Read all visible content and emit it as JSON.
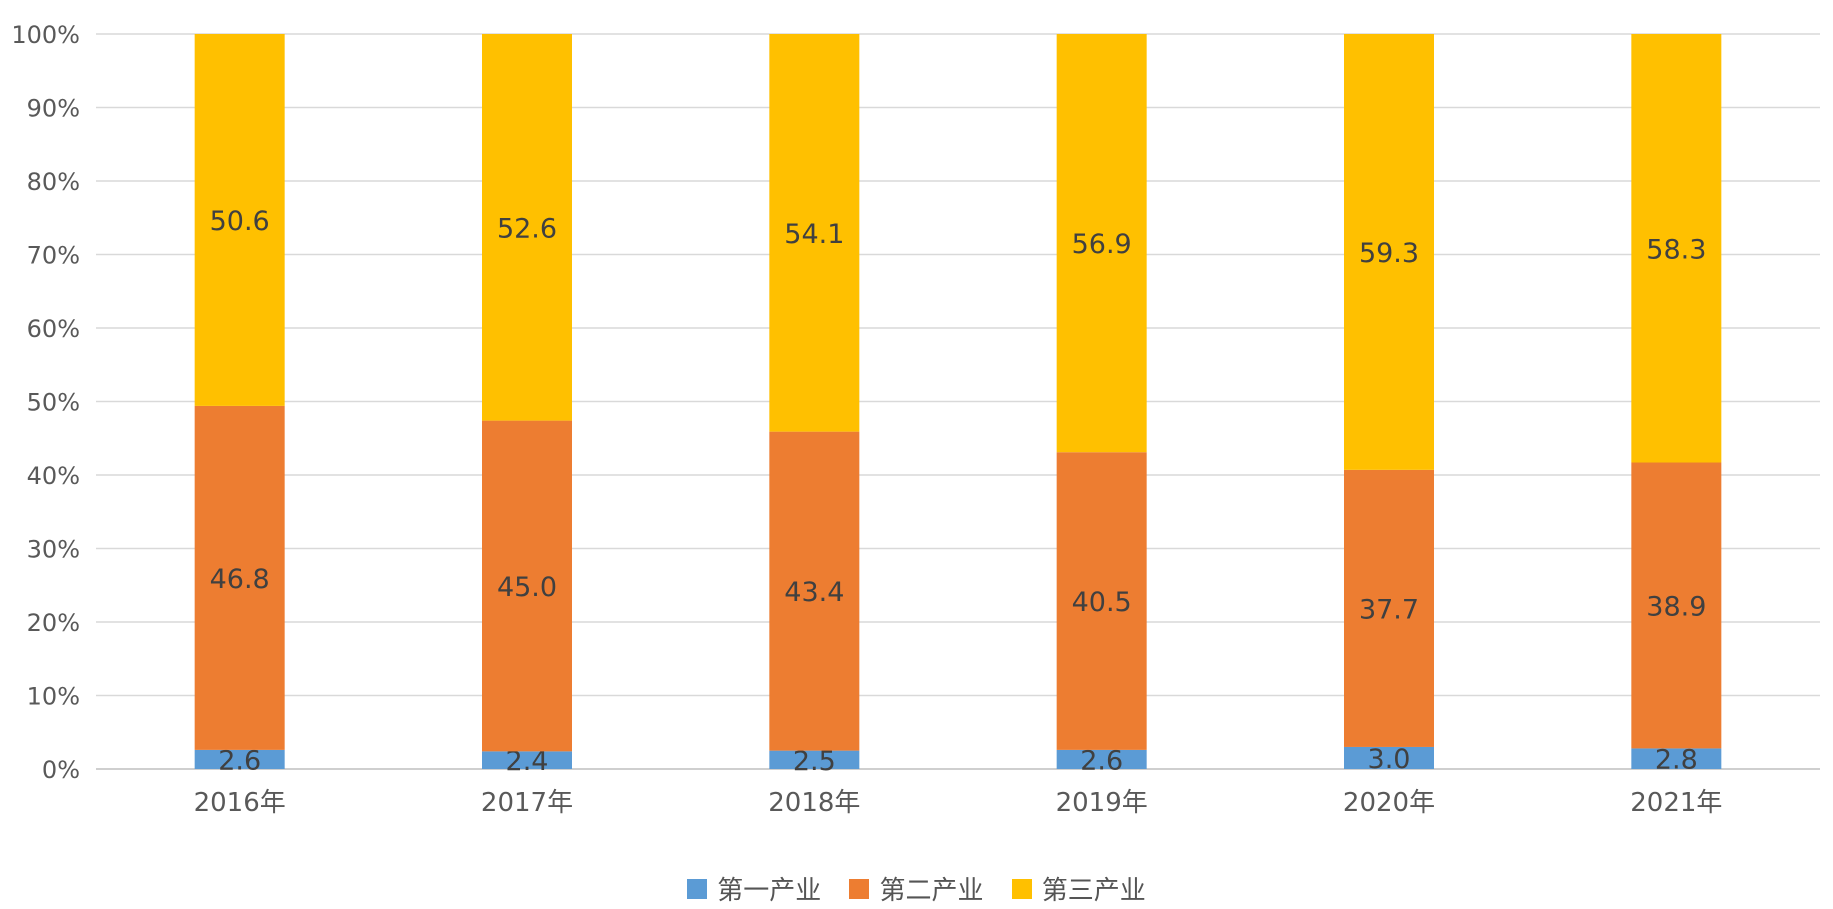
{
  "chart_data": {
    "type": "bar",
    "stacked": true,
    "percent_stacked": true,
    "categories": [
      "2016年",
      "2017年",
      "2018年",
      "2019年",
      "2020年",
      "2021年"
    ],
    "series": [
      {
        "name": "第一产业",
        "color": "#5B9BD5",
        "values": [
          2.6,
          2.4,
          2.5,
          2.6,
          3.0,
          2.8
        ],
        "labels": [
          "2.6",
          "2.4",
          "2.5",
          "2.6",
          "3.0",
          "2.8"
        ]
      },
      {
        "name": "第二产业",
        "color": "#ED7D31",
        "values": [
          46.8,
          45.0,
          43.4,
          40.5,
          37.7,
          38.9
        ],
        "labels": [
          "46.8",
          "45.0",
          "43.4",
          "40.5",
          "37.7",
          "38.9"
        ]
      },
      {
        "name": "第三产业",
        "color": "#FFC000",
        "values": [
          50.6,
          52.6,
          54.1,
          56.9,
          59.3,
          58.3
        ],
        "labels": [
          "50.6",
          "52.6",
          "54.1",
          "56.9",
          "59.3",
          "58.3"
        ]
      }
    ],
    "y_ticks": [
      "0%",
      "10%",
      "20%",
      "30%",
      "40%",
      "50%",
      "60%",
      "70%",
      "80%",
      "90%",
      "100%"
    ],
    "ylim": [
      0,
      100
    ],
    "grid": true,
    "legend_position": "bottom"
  }
}
